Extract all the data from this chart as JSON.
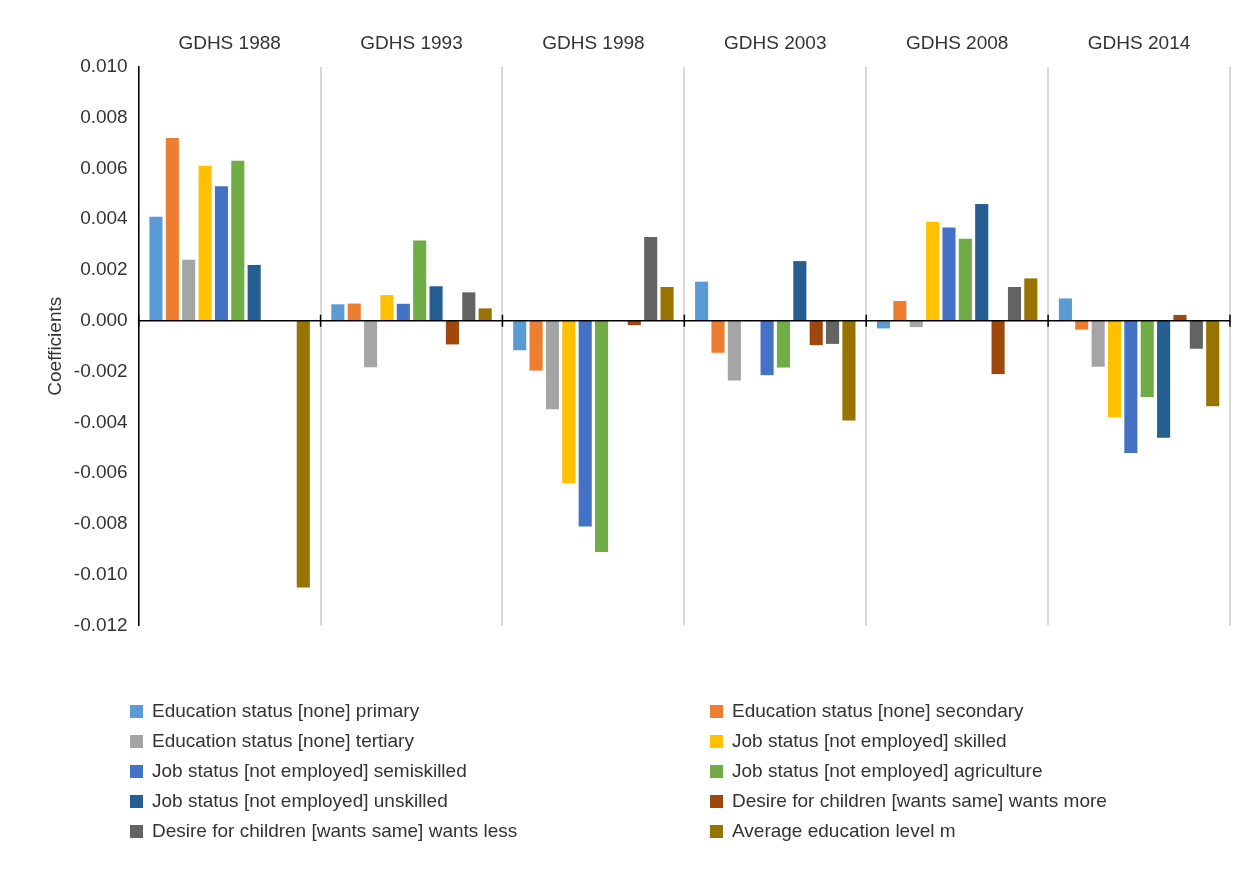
{
  "chart_data": {
    "type": "bar",
    "ylabel": "Coefficients",
    "categories": [
      "GDHS 1988",
      "GDHS 1993",
      "GDHS 1998",
      "GDHS 2003",
      "GDHS 2008",
      "GDHS 2014"
    ],
    "series": [
      {
        "name": "Education status [none] primary",
        "color": "#5b9bd5",
        "values": [
          0.0041,
          0.00065,
          -0.00116,
          0.00154,
          -0.0003,
          0.00088
        ]
      },
      {
        "name": "Education status [none] secondary",
        "color": "#ed7d31",
        "values": [
          0.0072,
          0.00068,
          -0.00196,
          -0.00126,
          0.00078,
          -0.00035
        ]
      },
      {
        "name": "Education status [none] tertiary",
        "color": "#a5a5a5",
        "values": [
          0.0024,
          -0.00183,
          -0.00348,
          -0.00235,
          -0.00025,
          -0.00181
        ]
      },
      {
        "name": "Job status [not employed] skilled",
        "color": "#ffc000",
        "values": [
          0.0061,
          0.00101,
          -0.0064,
          null,
          0.0039,
          -0.0038
        ]
      },
      {
        "name": "Job status [not employed] semiskilled",
        "color": "#4472c4",
        "values": [
          0.0053,
          0.00067,
          -0.0081,
          -0.00214,
          0.00367,
          -0.0052
        ]
      },
      {
        "name": "Job status [not employed] agriculture",
        "color": "#70ad47",
        "values": [
          0.0063,
          0.00316,
          -0.0091,
          -0.00184,
          0.00323,
          -0.003
        ]
      },
      {
        "name": "Job status [not employed] unskilled",
        "color": "#255e91",
        "values": [
          0.0022,
          0.00136,
          null,
          0.00235,
          0.0046,
          -0.0046
        ]
      },
      {
        "name": "Desire for children [wants same] wants more",
        "color": "#9e480e",
        "values": [
          null,
          -0.00093,
          -0.00017,
          -0.00096,
          -0.0021,
          0.00023
        ]
      },
      {
        "name": "Desire for children [wants same] wants less",
        "color": "#636363",
        "values": [
          null,
          0.00112,
          0.0033,
          -0.00091,
          0.00133,
          -0.0011
        ]
      },
      {
        "name": "Average education level m",
        "color": "#997300",
        "values": [
          -0.0105,
          0.00049,
          0.00133,
          -0.00393,
          0.00167,
          -0.00336
        ]
      }
    ],
    "ylim": [
      -0.012,
      0.01
    ],
    "yticks": [
      {
        "value": -0.012,
        "label": "-0.012"
      },
      {
        "value": -0.01,
        "label": "-0.010"
      },
      {
        "value": -0.008,
        "label": "-0.008"
      },
      {
        "value": -0.006,
        "label": "-0.006"
      },
      {
        "value": -0.004,
        "label": "-0.004"
      },
      {
        "value": -0.002,
        "label": "-0.002"
      },
      {
        "value": 0,
        "label": "0.000"
      },
      {
        "value": 0.002,
        "label": "0.002"
      },
      {
        "value": 0.004,
        "label": "0.004"
      },
      {
        "value": 0.006,
        "label": "0.006"
      },
      {
        "value": 0.008,
        "label": "0.008"
      },
      {
        "value": 0.01,
        "label": "0.010"
      }
    ],
    "grid": "x",
    "legend": "bottom"
  }
}
